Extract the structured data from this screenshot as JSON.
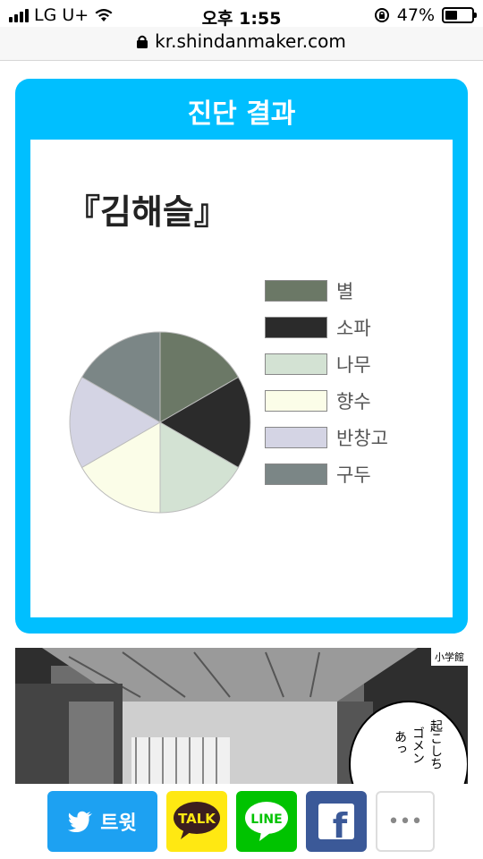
{
  "status_bar": {
    "carrier": "LG U+",
    "time": "오후 1:55",
    "battery_percent": "47%",
    "battery_level": 0.47
  },
  "browser": {
    "url": "kr.shindanmaker.com"
  },
  "result_card": {
    "title": "진단 결과",
    "result_text": "『김해슬』"
  },
  "chart_data": {
    "type": "pie",
    "title": "",
    "categories": [
      "별",
      "소파",
      "나무",
      "향수",
      "반창고",
      "구두"
    ],
    "values": [
      1,
      1,
      1,
      1,
      1,
      1
    ],
    "colors": [
      "#6b7866",
      "#2b2b2b",
      "#d3e2d3",
      "#fbfde8",
      "#d4d4e4",
      "#7b8686"
    ],
    "legend_position": "right"
  },
  "manga": {
    "publisher_tag": "小学館"
  },
  "share": {
    "tweet_label": "트윗",
    "kakao_label": "TALK",
    "line_label": "LINE",
    "facebook_label": "f",
    "more_label": "•••"
  }
}
